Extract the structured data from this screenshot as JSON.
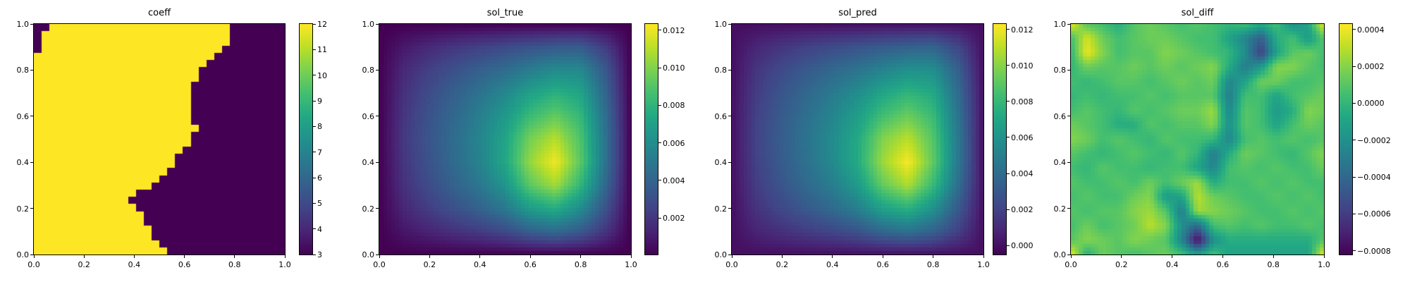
{
  "figure": {
    "background": "#ffffff",
    "text_color": "#000000",
    "colormap_name": "viridis",
    "viridis_stops": [
      "#440154",
      "#482475",
      "#414487",
      "#355f8d",
      "#2a788e",
      "#21918c",
      "#22a884",
      "#44bf70",
      "#7ad151",
      "#bddf26",
      "#fde725"
    ]
  },
  "chart_data": [
    {
      "type": "heatmap",
      "title": "coeff",
      "xlabel": "",
      "ylabel": "",
      "x_range": [
        0.0,
        1.0
      ],
      "y_range": [
        0.0,
        1.0
      ],
      "x_ticks": [
        "0.0",
        "0.2",
        "0.4",
        "0.6",
        "0.8",
        "1.0"
      ],
      "y_ticks": [
        "0.0",
        "0.2",
        "0.4",
        "0.6",
        "0.8",
        "1.0"
      ],
      "colormap": "viridis",
      "vmin": 3,
      "vmax": 12,
      "colorbar_ticks": [
        {
          "v": 12,
          "label": "12"
        },
        {
          "v": 11,
          "label": "11"
        },
        {
          "v": 10,
          "label": "10"
        },
        {
          "v": 9,
          "label": "9"
        },
        {
          "v": 8,
          "label": "8"
        },
        {
          "v": 7,
          "label": "7"
        },
        {
          "v": 6,
          "label": "6"
        },
        {
          "v": 5,
          "label": "5"
        },
        {
          "v": 4,
          "label": "4"
        },
        {
          "v": 3,
          "label": "3"
        }
      ],
      "grid": {
        "interpolation": "nearest",
        "encoding": "binary rows top-to-bottom, '1'=high '0'=low",
        "high": 12,
        "low": 3,
        "rows": [
          "00111111111111111111111110000000",
          "01111111111111111111111110000000",
          "01111111111111111111111110000000",
          "01111111111111111111111100000000",
          "11111111111111111111111000000000",
          "11111111111111111111110000000000",
          "11111111111111111111100000000000",
          "11111111111111111111100000000000",
          "11111111111111111111000000000000",
          "11111111111111111111000000000000",
          "11111111111111111111000000000000",
          "11111111111111111111000000000000",
          "11111111111111111111000000000000",
          "11111111111111111111000000000000",
          "11111111111111111111100000000000",
          "11111111111111111111000000000000",
          "11111111111111111111000000000000",
          "11111111111111111110000000000000",
          "11111111111111111100000000000000",
          "11111111111111111100000000000000",
          "11111111111111111000000000000000",
          "11111111111111110000000000000000",
          "11111111111111100000000000000000",
          "11111111111110000000000000000000",
          "11111111111100000000000000000000",
          "11111111111110000000000000000000",
          "11111111111111000000000000000000",
          "11111111111111000000000000000000",
          "11111111111111100000000000000000",
          "11111111111111100000000000000000",
          "11111111111111110000000000000000",
          "11111111111111111000000000000000"
        ]
      }
    },
    {
      "type": "heatmap",
      "title": "sol_true",
      "xlabel": "",
      "ylabel": "",
      "x_range": [
        0.0,
        1.0
      ],
      "y_range": [
        0.0,
        1.0
      ],
      "x_ticks": [
        "0.0",
        "0.2",
        "0.4",
        "0.6",
        "0.8",
        "1.0"
      ],
      "y_ticks": [
        "0.0",
        "0.2",
        "0.4",
        "0.6",
        "0.8",
        "1.0"
      ],
      "colormap": "viridis",
      "vmin": 5e-05,
      "vmax": 0.01233,
      "colorbar_ticks": [
        {
          "v": 0.012,
          "label": "0.012"
        },
        {
          "v": 0.01,
          "label": "0.010"
        },
        {
          "v": 0.008,
          "label": "0.008"
        },
        {
          "v": 0.006,
          "label": "0.006"
        },
        {
          "v": 0.004,
          "label": "0.004"
        },
        {
          "v": 0.002,
          "label": "0.002"
        }
      ],
      "grid": {
        "interpolation": "bilinear",
        "encoding": "value rows top-to-bottom (y=1 to y=0), multiply by scale",
        "scale": 0.001,
        "rows": [
          [
            0,
            0,
            0,
            0,
            0,
            0,
            0,
            0,
            0,
            0,
            0
          ],
          [
            0,
            0.9,
            1.5,
            2.0,
            2.4,
            2.8,
            3.2,
            3.5,
            3.6,
            2.2,
            0
          ],
          [
            0,
            1.5,
            2.4,
            3.1,
            3.8,
            4.4,
            5.2,
            5.9,
            5.8,
            3.4,
            0
          ],
          [
            0,
            1.8,
            2.9,
            3.8,
            4.7,
            5.7,
            7.0,
            7.8,
            7.2,
            4.0,
            0
          ],
          [
            0,
            2.0,
            3.2,
            4.2,
            5.3,
            6.6,
            8.4,
            9.4,
            8.2,
            4.4,
            0
          ],
          [
            0,
            2.1,
            3.3,
            4.4,
            5.6,
            7.2,
            9.8,
            11.0,
            8.9,
            4.6,
            0
          ],
          [
            0,
            2.0,
            3.2,
            4.3,
            5.5,
            7.3,
            10.4,
            12.1,
            9.2,
            4.6,
            0
          ],
          [
            0,
            1.8,
            2.9,
            3.9,
            4.9,
            6.4,
            9.2,
            10.6,
            8.1,
            4.1,
            0
          ],
          [
            0,
            1.4,
            2.3,
            3.1,
            3.9,
            5.0,
            6.8,
            7.6,
            6.0,
            3.1,
            0
          ],
          [
            0,
            0.8,
            1.3,
            1.8,
            2.2,
            2.8,
            3.8,
            4.3,
            3.5,
            1.9,
            0
          ],
          [
            0,
            0,
            0,
            0,
            0,
            0,
            0,
            0,
            0,
            0,
            0
          ]
        ]
      }
    },
    {
      "type": "heatmap",
      "title": "sol_pred",
      "xlabel": "",
      "ylabel": "",
      "x_range": [
        0.0,
        1.0
      ],
      "y_range": [
        0.0,
        1.0
      ],
      "x_ticks": [
        "0.0",
        "0.2",
        "0.4",
        "0.6",
        "0.8",
        "1.0"
      ],
      "y_ticks": [
        "0.0",
        "0.2",
        "0.4",
        "0.6",
        "0.8",
        "1.0"
      ],
      "colormap": "viridis",
      "vmin": -0.0005,
      "vmax": 0.0123,
      "colorbar_ticks": [
        {
          "v": 0.012,
          "label": "0.012"
        },
        {
          "v": 0.01,
          "label": "0.010"
        },
        {
          "v": 0.008,
          "label": "0.008"
        },
        {
          "v": 0.006,
          "label": "0.006"
        },
        {
          "v": 0.004,
          "label": "0.004"
        },
        {
          "v": 0.002,
          "label": "0.002"
        },
        {
          "v": 0.0,
          "label": "0.000"
        }
      ],
      "grid": {
        "interpolation": "bilinear",
        "encoding": "value rows top-to-bottom (y=1 to y=0), multiply by scale",
        "scale": 0.001,
        "rows": [
          [
            0,
            0,
            0,
            0,
            0,
            0,
            0,
            0,
            0,
            0,
            0
          ],
          [
            0,
            0.9,
            1.5,
            2.0,
            2.4,
            2.8,
            3.2,
            3.5,
            3.6,
            2.2,
            0
          ],
          [
            0,
            1.5,
            2.4,
            3.1,
            3.8,
            4.4,
            5.2,
            5.9,
            5.8,
            3.4,
            0
          ],
          [
            0,
            1.8,
            2.9,
            3.8,
            4.7,
            5.7,
            7.0,
            7.8,
            7.2,
            4.0,
            0
          ],
          [
            0,
            2.0,
            3.2,
            4.2,
            5.3,
            6.6,
            8.4,
            9.4,
            8.2,
            4.4,
            0
          ],
          [
            0,
            2.1,
            3.3,
            4.4,
            5.6,
            7.2,
            9.9,
            11.0,
            8.9,
            4.6,
            0
          ],
          [
            0,
            2.0,
            3.2,
            4.3,
            5.5,
            7.3,
            10.4,
            12.2,
            9.2,
            4.6,
            0
          ],
          [
            0,
            1.8,
            2.9,
            3.9,
            4.9,
            6.4,
            9.2,
            10.7,
            8.1,
            4.1,
            0
          ],
          [
            0,
            1.4,
            2.3,
            3.1,
            3.9,
            5.0,
            6.8,
            7.6,
            6.0,
            3.1,
            0
          ],
          [
            0,
            0.8,
            1.3,
            1.8,
            2.2,
            2.8,
            3.8,
            4.3,
            3.5,
            1.9,
            0
          ],
          [
            0,
            0,
            0,
            0,
            0,
            0,
            0,
            0,
            0,
            0,
            0
          ]
        ]
      }
    },
    {
      "type": "heatmap",
      "title": "sol_diff",
      "xlabel": "",
      "ylabel": "",
      "x_range": [
        0.0,
        1.0
      ],
      "y_range": [
        0.0,
        1.0
      ],
      "x_ticks": [
        "0.0",
        "0.2",
        "0.4",
        "0.6",
        "0.8",
        "1.0"
      ],
      "y_ticks": [
        "0.0",
        "0.2",
        "0.4",
        "0.6",
        "0.8",
        "1.0"
      ],
      "colormap": "viridis",
      "vmin": -0.00082,
      "vmax": 0.00043,
      "colorbar_ticks": [
        {
          "v": 0.0004,
          "label": "0.0004"
        },
        {
          "v": 0.0002,
          "label": "0.0002"
        },
        {
          "v": 0.0,
          "label": "0.0000"
        },
        {
          "v": -0.0002,
          "label": "−0.0002"
        },
        {
          "v": -0.0004,
          "label": "−0.0004"
        },
        {
          "v": -0.0006,
          "label": "−0.0006"
        },
        {
          "v": -0.0008,
          "label": "−0.0008"
        }
      ],
      "grid": {
        "interpolation": "bilinear",
        "encoding": "value rows top-to-bottom (y=1 to y=0), multiply by scale",
        "scale": 0.0001,
        "rows": [
          [
            4,
            1,
            0.5,
            -0.5,
            1,
            1.5,
            1,
            0.5,
            1,
            0.5,
            0,
            0.5,
            -0.5,
            0.5,
            -2,
            -1,
            4
          ],
          [
            0.5,
            3.5,
            1.5,
            0.5,
            1,
            1.5,
            1.5,
            1,
            0.5,
            0.5,
            -1,
            -2.5,
            -4.5,
            -0.5,
            0.5,
            -1.5,
            1
          ],
          [
            0,
            4,
            2,
            0.5,
            1,
            1,
            2,
            1.5,
            1,
            0.5,
            0,
            -2,
            -6,
            -1,
            1,
            1.5,
            0.5
          ],
          [
            0,
            1.5,
            1,
            1,
            1.5,
            1,
            1.5,
            1,
            1.5,
            2,
            -0.5,
            -3,
            -1.5,
            2,
            2,
            1,
            0.5
          ],
          [
            0.5,
            0,
            0.5,
            1,
            1,
            0.5,
            1,
            1.5,
            1,
            1.5,
            -2.5,
            -1,
            1.5,
            1.5,
            0.5,
            0.5,
            1
          ],
          [
            0,
            0.5,
            0,
            0.5,
            0.5,
            1,
            0.5,
            1,
            1,
            1,
            -3,
            0.5,
            0.5,
            -1,
            0.5,
            1,
            1.5
          ],
          [
            0.5,
            1,
            0.5,
            0,
            1,
            0.5,
            1,
            1.5,
            1.5,
            2.5,
            -2.5,
            1,
            0.5,
            -1.5,
            -0.5,
            2,
            1.5
          ],
          [
            1.5,
            1,
            0.5,
            -0.5,
            -0.5,
            1,
            0.5,
            1,
            1,
            2,
            -2,
            1,
            0.5,
            -1,
            0.5,
            1.5,
            1
          ],
          [
            2,
            1.5,
            0.5,
            1,
            0.5,
            0,
            1,
            0.5,
            0.5,
            0,
            -2.5,
            0.5,
            1,
            0.5,
            1,
            0.5,
            1
          ],
          [
            1,
            0.5,
            0,
            0.5,
            1,
            0.5,
            0,
            1,
            0,
            -3,
            -0.5,
            1.5,
            1,
            0.5,
            0,
            1,
            2
          ],
          [
            0.5,
            0,
            1,
            0.5,
            0.5,
            0,
            0.5,
            0.5,
            -1,
            -2.5,
            0.5,
            1,
            0.5,
            1,
            0.5,
            0.5,
            1.5
          ],
          [
            1,
            0.5,
            0.5,
            1,
            0.5,
            1.5,
            0.5,
            1.5,
            2.5,
            -0.5,
            0.5,
            0.5,
            1,
            0.5,
            1,
            0.5,
            0.5
          ],
          [
            0.5,
            1,
            0.5,
            0.5,
            1.5,
            2,
            -1.5,
            -1,
            3,
            1.5,
            1,
            0.5,
            0.5,
            1,
            0.5,
            1,
            0.5
          ],
          [
            1,
            0.5,
            1,
            1,
            2,
            2.5,
            1,
            -3,
            2.5,
            2,
            1.5,
            1,
            0.5,
            0.5,
            1,
            0.5,
            1
          ],
          [
            0.5,
            1.5,
            0.5,
            1,
            1.5,
            3,
            2,
            -2,
            -4,
            0.5,
            1,
            0.5,
            1,
            0.5,
            0.5,
            1,
            0.5
          ],
          [
            1,
            2,
            1.5,
            1,
            2,
            1.5,
            1,
            -2.5,
            -8,
            -2,
            -0.5,
            -0.5,
            -0.5,
            -0.5,
            -0.5,
            -0.5,
            1
          ],
          [
            4,
            -0.5,
            1.5,
            1,
            0.5,
            1,
            1.5,
            0.5,
            -1,
            0.5,
            -1,
            -1,
            -1,
            -1,
            -1,
            -1,
            4
          ]
        ]
      }
    }
  ]
}
